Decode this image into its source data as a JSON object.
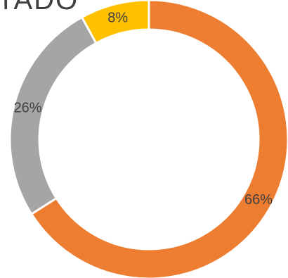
{
  "chart_data": {
    "type": "pie",
    "donut": true,
    "title": "TADO",
    "slices": [
      {
        "label": "66%",
        "value": 66,
        "color": "#ED7D31"
      },
      {
        "label": "26%",
        "value": 26,
        "color": "#A5A5A5"
      },
      {
        "label": "8%",
        "value": 8,
        "color": "#FFC000"
      }
    ],
    "legend": "none"
  }
}
